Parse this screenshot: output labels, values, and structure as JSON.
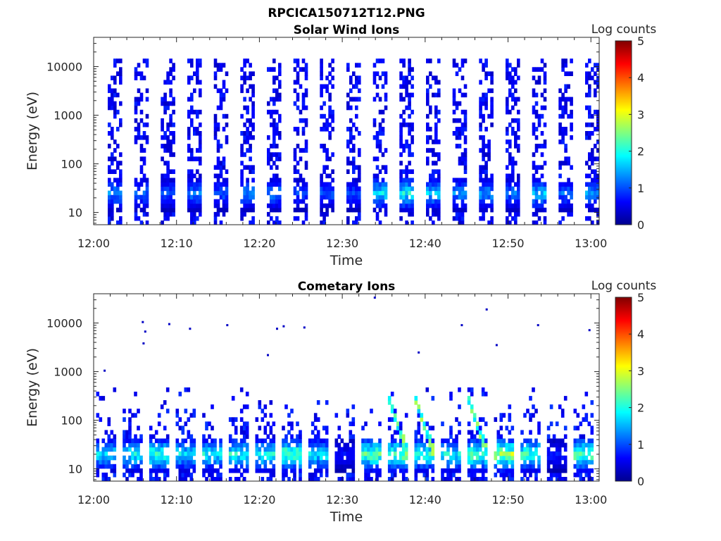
{
  "figure": {
    "title": "RPCICA150712T12.PNG"
  },
  "colorbar_scale": {
    "colormap": "jet",
    "colors": [
      "#00008f",
      "#0000ff",
      "#00ffff",
      "#ffff00",
      "#ff0000",
      "#800000"
    ]
  },
  "chart_data": [
    {
      "type": "heatmap",
      "title": "Solar Wind Ions",
      "xlabel": "Time",
      "ylabel": "Energy (eV)",
      "x_range": [
        "12:00",
        "13:01"
      ],
      "x_ticks": [
        "12:00",
        "12:10",
        "12:20",
        "12:30",
        "12:40",
        "12:50",
        "13:00"
      ],
      "y_scale": "log",
      "y_range": [
        5.6,
        40000
      ],
      "y_ticks": [
        "10",
        "100",
        "1000",
        "10000"
      ],
      "colorbar": {
        "label": "Log counts",
        "range": [
          0,
          5
        ],
        "ticks": [
          "0",
          "1",
          "2",
          "3",
          "4",
          "5"
        ]
      },
      "sweep_pattern": {
        "sweep_period_min": 3.2,
        "sweep_start_times_min": [
          1.7,
          4.9,
          8.1,
          11.3,
          14.5,
          17.7,
          20.9,
          24.1,
          27.3,
          30.5,
          33.7,
          36.9,
          40.1,
          43.3,
          46.5,
          49.7,
          52.9,
          56.1,
          59.3
        ],
        "band_width_min": 1.6,
        "peak_energy_eV": 25,
        "peak_log_counts": [
          1.6,
          1.4,
          1.3,
          1.5,
          1.3,
          1.6,
          1.5,
          1.2,
          1.3,
          1.2,
          2.1,
          2.3,
          1.9,
          1.6,
          1.7,
          1.4,
          1.9,
          1.4,
          1.7
        ],
        "high_energy_extent_eV": 15000,
        "high_energy_log_counts": 0.3
      }
    },
    {
      "type": "heatmap",
      "title": "Cometary Ions",
      "xlabel": "Time",
      "ylabel": "Energy (eV)",
      "x_range": [
        "12:00",
        "13:01"
      ],
      "x_ticks": [
        "12:00",
        "12:10",
        "12:20",
        "12:30",
        "12:40",
        "12:50",
        "13:00"
      ],
      "y_scale": "log",
      "y_range": [
        5.6,
        40000
      ],
      "y_ticks": [
        "10",
        "100",
        "1000",
        "10000"
      ],
      "colorbar": {
        "label": "Log counts",
        "range": [
          0,
          5
        ],
        "ticks": [
          "0",
          "1",
          "2",
          "3",
          "4",
          "5"
        ]
      },
      "sweep_pattern": {
        "sweep_period_min": 3.2,
        "sweep_start_times_min": [
          0.3,
          3.5,
          6.7,
          9.9,
          13.1,
          16.3,
          19.5,
          22.7,
          25.9,
          29.1,
          32.3,
          35.5,
          38.7,
          41.9,
          45.1,
          48.3,
          51.5,
          54.7,
          57.9
        ],
        "band_width_min": 2.2,
        "peak_energy_eV": 20,
        "peak_log_counts": [
          2.1,
          2.3,
          2.6,
          2.2,
          2.3,
          2.5,
          2.4,
          2.9,
          2.2,
          0.8,
          2.9,
          3.0,
          2.6,
          2.3,
          2.8,
          3.2,
          2.7,
          0.9,
          2.9
        ],
        "high_energy_extent_eV": 500,
        "high_energy_log_counts": 0.4,
        "diagonal_streak_times_min": [
          35.8,
          38.6,
          45.2
        ],
        "sparse_points": [
          [
            5.8,
            11000
          ],
          [
            6.1,
            7000
          ],
          [
            5.9,
            4000
          ],
          [
            9.0,
            10000
          ],
          [
            11.5,
            8000
          ],
          [
            16.0,
            9500
          ],
          [
            22.0,
            8000
          ],
          [
            22.8,
            9000
          ],
          [
            25.3,
            8500
          ],
          [
            33.8,
            35000
          ],
          [
            44.3,
            9500
          ],
          [
            47.3,
            20000
          ],
          [
            53.5,
            9500
          ],
          [
            59.7,
            7500
          ],
          [
            1.2,
            1100
          ],
          [
            20.9,
            2300
          ],
          [
            39.1,
            2600
          ],
          [
            48.5,
            3700
          ]
        ]
      }
    }
  ]
}
